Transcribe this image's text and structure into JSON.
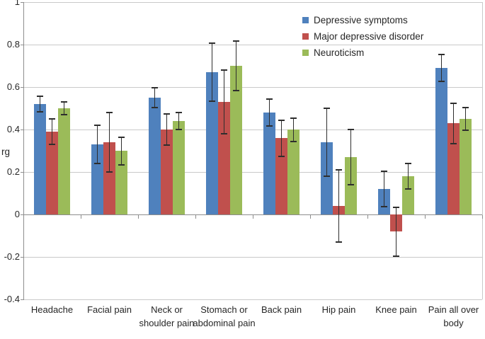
{
  "chart_data": {
    "type": "bar",
    "title": "",
    "ylabel": "rg",
    "ylim": [
      -0.4,
      1
    ],
    "grid": true,
    "legend_position": "top-right-inside",
    "yticks": [
      {
        "value": 1,
        "label": "1"
      },
      {
        "value": 0.8,
        "label": "0.8"
      },
      {
        "value": 0.6,
        "label": "0.6"
      },
      {
        "value": 0.4,
        "label": "0.4"
      },
      {
        "value": 0.2,
        "label": "0.2"
      },
      {
        "value": 0,
        "label": "0"
      },
      {
        "value": -0.2,
        "label": "-0.2"
      },
      {
        "value": -0.4,
        "label": "-0.4"
      }
    ],
    "categories": [
      "Headache",
      "Facial pain",
      "Neck or shoulder pain",
      "Stomach or abdominal pain",
      "Back pain",
      "Hip pain",
      "Knee pain",
      "Pain all over body"
    ],
    "series": [
      {
        "name": "Depressive symptoms",
        "color": "#4F81BD",
        "values": [
          0.52,
          0.33,
          0.55,
          0.67,
          0.48,
          0.34,
          0.12,
          0.69
        ],
        "errors": [
          0.035,
          0.09,
          0.048,
          0.135,
          0.063,
          0.16,
          0.083,
          0.062
        ]
      },
      {
        "name": "Major depressive disorder",
        "color": "#C0504D",
        "values": [
          0.39,
          0.34,
          0.4,
          0.53,
          0.36,
          0.04,
          -0.08,
          0.43
        ],
        "errors": [
          0.06,
          0.14,
          0.072,
          0.15,
          0.085,
          0.17,
          0.115,
          0.095
        ]
      },
      {
        "name": "Neuroticism",
        "color": "#9BBB59",
        "values": [
          0.5,
          0.3,
          0.44,
          0.7,
          0.4,
          0.27,
          0.18,
          0.45
        ],
        "errors": [
          0.03,
          0.065,
          0.04,
          0.118,
          0.055,
          0.13,
          0.06,
          0.053
        ]
      }
    ],
    "colors": {
      "gridline": "#C9C9C9",
      "axis_line": "#8E8E8E",
      "error_bar": "#2E2E2E",
      "text": "#262626",
      "background": "#FFFFFF"
    }
  }
}
